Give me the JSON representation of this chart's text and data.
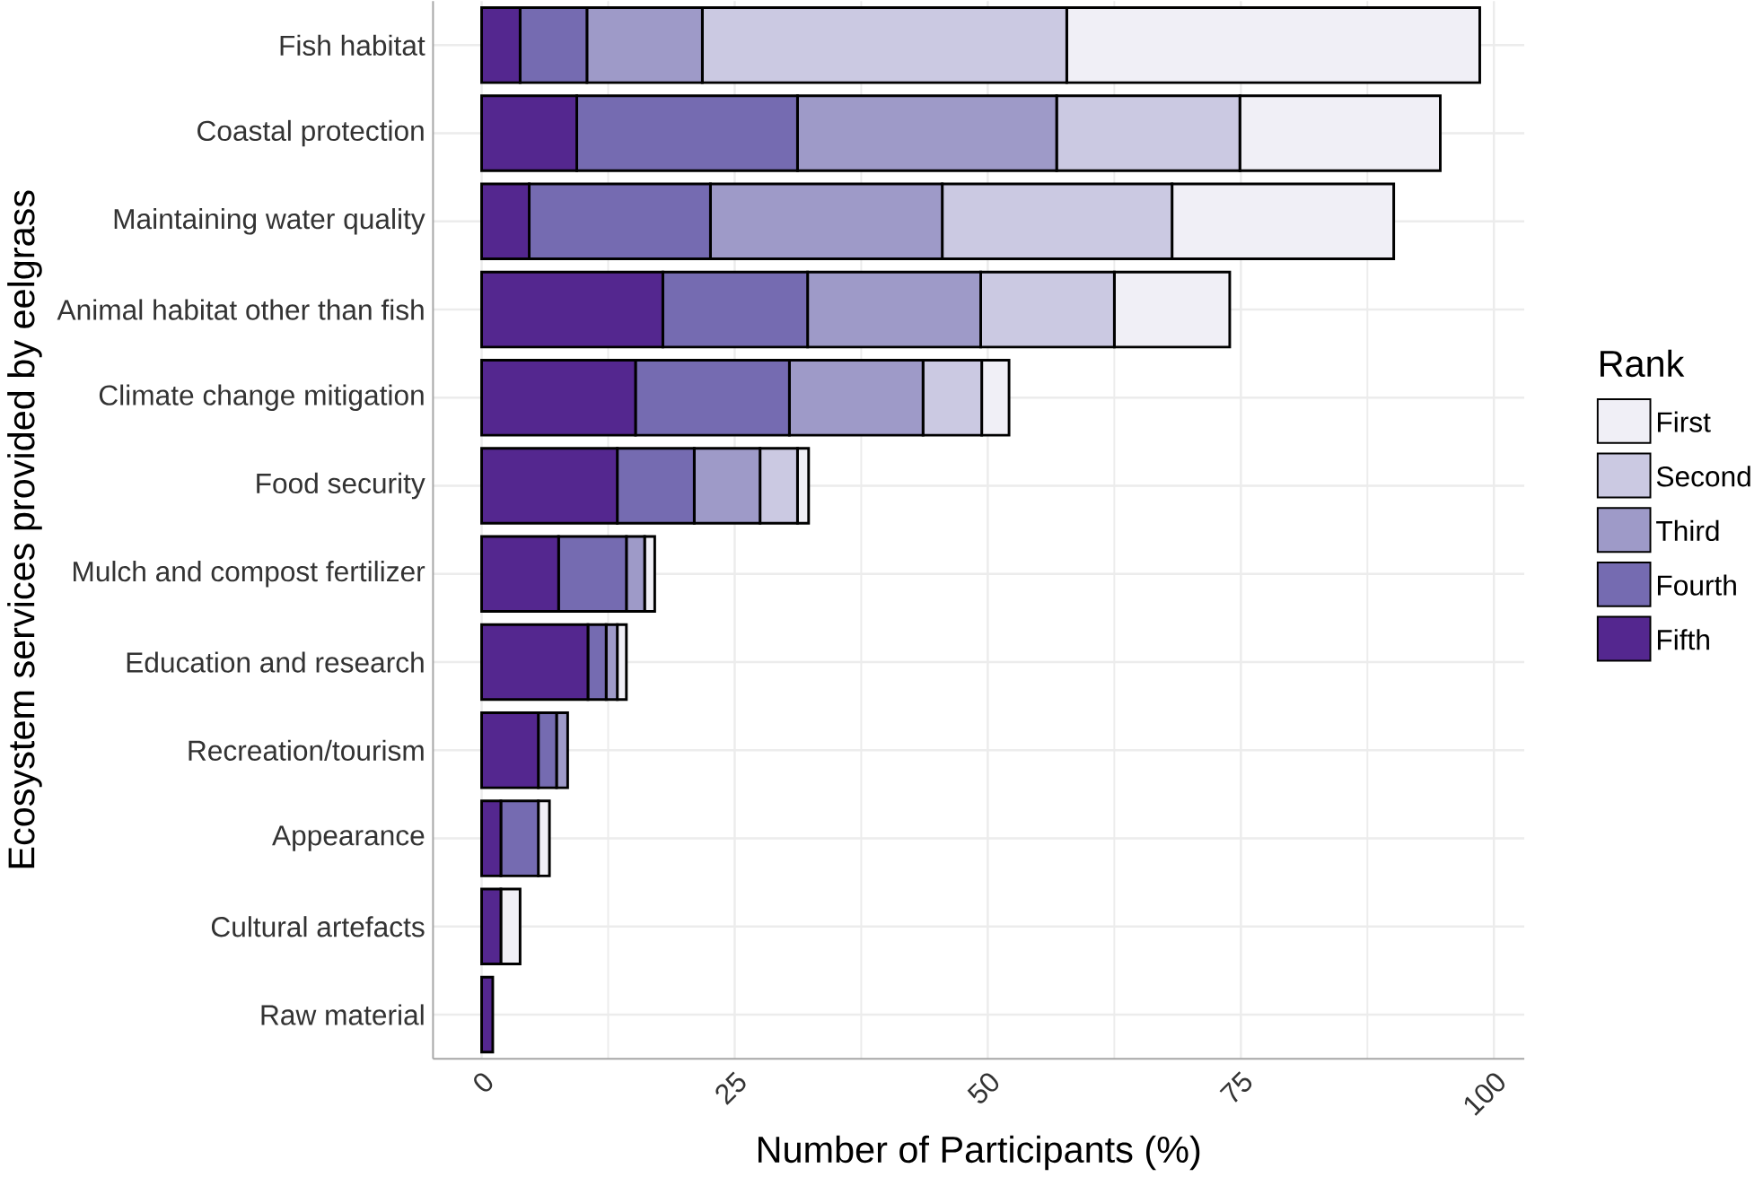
{
  "chart_data": {
    "type": "bar",
    "orientation": "horizontal",
    "stacked": true,
    "xlabel": "Number of Participants (%)",
    "ylabel": "Ecosystem services provided by eelgrass",
    "legend_title": "Rank",
    "categories": [
      "Fish habitat",
      "Coastal protection",
      "Maintaining water quality",
      "Animal habitat other than fish",
      "Climate change mitigation",
      "Food security",
      "Mulch and compost fertilizer",
      "Education and research",
      "Recreation/tourism",
      "Appearance",
      "Cultural artefacts",
      "Raw material"
    ],
    "series": [
      {
        "name": "Fifth",
        "color": "#54278f",
        "values": [
          3.8,
          9.4,
          4.7,
          17.9,
          15.2,
          13.4,
          7.6,
          10.5,
          5.6,
          1.9,
          1.9,
          1.1
        ]
      },
      {
        "name": "Fourth",
        "color": "#756bb1",
        "values": [
          6.6,
          21.8,
          17.9,
          14.3,
          15.2,
          7.6,
          6.7,
          1.8,
          1.8,
          3.7,
          0,
          0
        ]
      },
      {
        "name": "Third",
        "color": "#9e9ac8",
        "values": [
          11.4,
          25.6,
          22.9,
          17.1,
          13.2,
          6.5,
          1.8,
          1.1,
          1.1,
          0,
          0,
          0
        ]
      },
      {
        "name": "Second",
        "color": "#cbc9e2",
        "values": [
          36.0,
          18.1,
          22.7,
          13.2,
          5.8,
          3.7,
          0,
          0,
          0,
          0,
          0,
          0
        ]
      },
      {
        "name": "First",
        "color": "#f0eff6",
        "values": [
          40.8,
          19.8,
          21.9,
          11.4,
          2.7,
          1.1,
          1.0,
          0.9,
          0,
          1.1,
          1.9,
          0
        ]
      }
    ],
    "xlim": [
      -4.8,
      103
    ],
    "xticks": [
      0,
      25,
      50,
      75,
      100
    ],
    "grid": true,
    "legend": "right"
  }
}
